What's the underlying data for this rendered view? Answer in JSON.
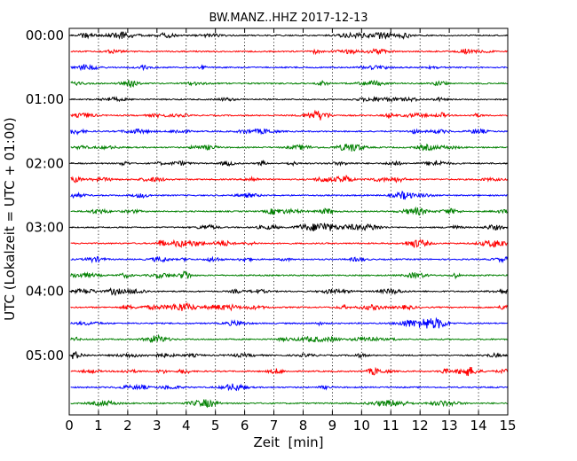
{
  "chart_data": {
    "type": "line",
    "title": "BW.MANZ..HHZ 2017-12-13",
    "xlabel": "Zeit  [min]",
    "ylabel": "UTC (Lokalzeit = UTC + 01:00)",
    "xlim": [
      0,
      15
    ],
    "x_ticks": [
      0,
      1,
      2,
      3,
      4,
      5,
      6,
      7,
      8,
      9,
      10,
      11,
      12,
      13,
      14,
      15
    ],
    "x_tick_labels": [
      "0",
      "1",
      "2",
      "3",
      "4",
      "5",
      "6",
      "7",
      "8",
      "9",
      "10",
      "11",
      "12",
      "13",
      "14",
      "15"
    ],
    "y_tick_labels": [
      "00:00",
      "01:00",
      "02:00",
      "03:00",
      "04:00",
      "05:00"
    ],
    "row_interval_minutes": 15,
    "row_count": 24,
    "row_colors": [
      "#000000",
      "#ff0000",
      "#0000ff",
      "#008000"
    ],
    "grid": "vertical dotted lines at each minute",
    "legend": "none",
    "trace_start_min": 0.05
  }
}
